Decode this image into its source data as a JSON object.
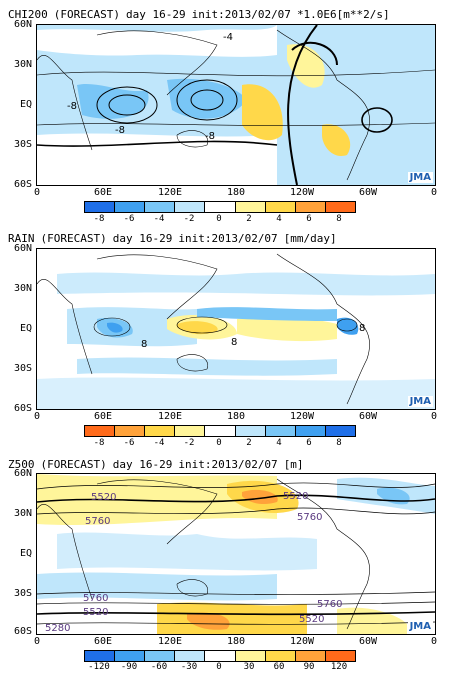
{
  "panels": [
    {
      "title": [
        "CHI200",
        "(FORECAST)",
        "day 16-29",
        "init:2013/02/07",
        "*1.0E6[m**2/s]"
      ],
      "cbar_colors": [
        "#1f6fe8",
        "#3fa0f0",
        "#79c6f6",
        "#bfe6fb",
        "#ffffff",
        "#fff59a",
        "#ffd84a",
        "#ffa23a",
        "#ff6a1a"
      ],
      "cbar_labels": [
        "-8",
        "-6",
        "-4",
        "-2",
        "0",
        "2",
        "4",
        "6",
        "8"
      ],
      "contour_labels": [
        "-4",
        "-8",
        "-8",
        "-8"
      ]
    },
    {
      "title": [
        "RAIN",
        "(FORECAST)",
        "day 16-29",
        "init:2013/02/07",
        "[mm/day]"
      ],
      "cbar_colors": [
        "#ff6a1a",
        "#ffa23a",
        "#ffd84a",
        "#fff59a",
        "#ffffff",
        "#bfe6fb",
        "#79c6f6",
        "#3fa0f0",
        "#1f6fe8"
      ],
      "cbar_labels": [
        "-8",
        "-6",
        "-4",
        "-2",
        "0",
        "2",
        "4",
        "6",
        "8"
      ],
      "contour_labels": [
        "8",
        "8",
        "8"
      ]
    },
    {
      "title": [
        "Z500",
        "(FORECAST)",
        "day 16-29",
        "init:2013/02/07",
        "[m]"
      ],
      "cbar_colors": [
        "#1f6fe8",
        "#3fa0f0",
        "#79c6f6",
        "#bfe6fb",
        "#ffffff",
        "#fff59a",
        "#ffd84a",
        "#ffa23a",
        "#ff6a1a"
      ],
      "cbar_labels": [
        "-120",
        "-90",
        "-60",
        "-30",
        "0",
        "30",
        "60",
        "90",
        "120"
      ],
      "contour_labels": [
        "5520",
        "5520",
        "5760",
        "5760",
        "5760",
        "5760",
        "5520",
        "5520",
        "5280"
      ]
    }
  ],
  "axes": {
    "lat_labels": [
      "60N",
      "30N",
      "EQ",
      "30S",
      "60S"
    ],
    "lon_labels": [
      "0",
      "60E",
      "120E",
      "180",
      "120W",
      "60W",
      "0"
    ]
  },
  "logo": "JMA"
}
